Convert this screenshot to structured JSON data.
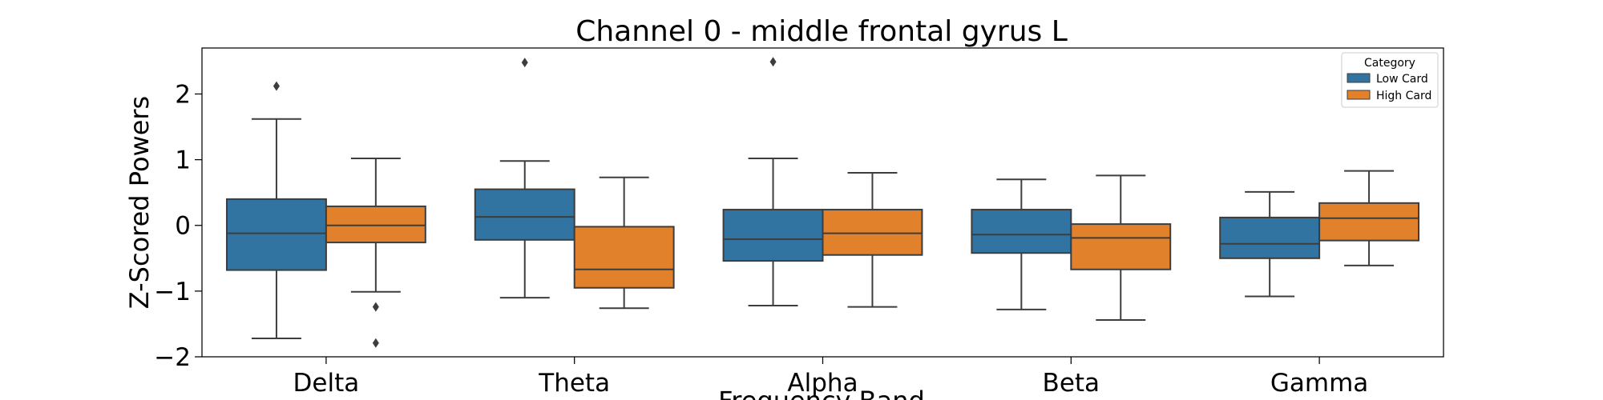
{
  "chart_data": {
    "type": "box",
    "title": "Channel 0 - middle frontal gyrus L",
    "xlabel": "Frequency Band",
    "ylabel": "Z-Scored Powers",
    "ylim": [
      -2.0,
      2.7
    ],
    "yticks": [
      -2,
      -1,
      0,
      1,
      2
    ],
    "ytick_labels": [
      "−2",
      "−1",
      "0",
      "1",
      "2"
    ],
    "categories": [
      "Delta",
      "Theta",
      "Alpha",
      "Beta",
      "Gamma"
    ],
    "grid": false,
    "legend": {
      "title": "Category",
      "position": "top-right"
    },
    "series": [
      {
        "name": "Low Card",
        "color": "#3274a1",
        "boxes": [
          {
            "whislo": -1.72,
            "q1": -0.68,
            "med": -0.12,
            "q3": 0.4,
            "whishi": 1.62,
            "fliers": [
              2.12
            ]
          },
          {
            "whislo": -1.1,
            "q1": -0.22,
            "med": 0.13,
            "q3": 0.55,
            "whishi": 0.98,
            "fliers": [
              2.48
            ]
          },
          {
            "whislo": -1.22,
            "q1": -0.54,
            "med": -0.21,
            "q3": 0.24,
            "whishi": 1.02,
            "fliers": [
              2.49
            ]
          },
          {
            "whislo": -1.28,
            "q1": -0.42,
            "med": -0.14,
            "q3": 0.24,
            "whishi": 0.7,
            "fliers": []
          },
          {
            "whislo": -1.08,
            "q1": -0.5,
            "med": -0.28,
            "q3": 0.12,
            "whishi": 0.51,
            "fliers": []
          }
        ]
      },
      {
        "name": "High Card",
        "color": "#e1812c",
        "boxes": [
          {
            "whislo": -1.01,
            "q1": -0.26,
            "med": 0.0,
            "q3": 0.29,
            "whishi": 1.02,
            "fliers": [
              -1.24,
              -1.79
            ]
          },
          {
            "whislo": -1.26,
            "q1": -0.95,
            "med": -0.67,
            "q3": -0.02,
            "whishi": 0.73,
            "fliers": []
          },
          {
            "whislo": -1.24,
            "q1": -0.45,
            "med": -0.12,
            "q3": 0.24,
            "whishi": 0.8,
            "fliers": []
          },
          {
            "whislo": -1.44,
            "q1": -0.67,
            "med": -0.19,
            "q3": 0.02,
            "whishi": 0.76,
            "fliers": []
          },
          {
            "whislo": -0.61,
            "q1": -0.23,
            "med": 0.11,
            "q3": 0.34,
            "whishi": 0.83,
            "fliers": []
          }
        ]
      }
    ]
  }
}
